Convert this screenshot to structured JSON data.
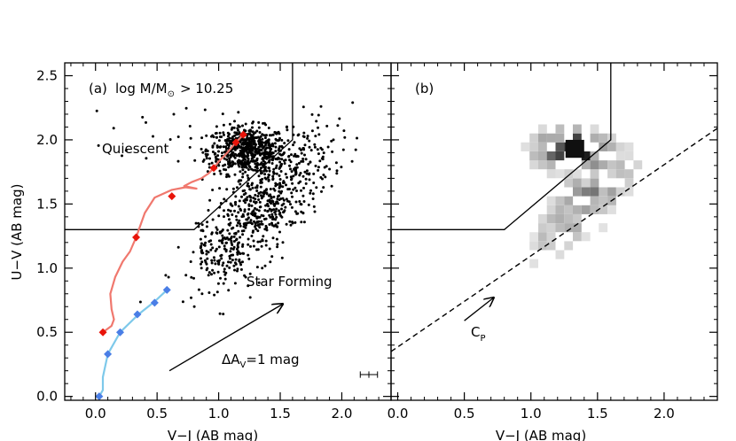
{
  "chart_data": [
    {
      "type": "scatter",
      "panel_label": "(a)",
      "mass_cut_prefix": "log M/M",
      "mass_cut_suffix": "> 10.25",
      "xlabel": "V−J (AB mag)",
      "ylabel": "U−V (AB mag)",
      "xlim": [
        -0.25,
        2.4
      ],
      "ylim": [
        -0.03,
        2.6
      ],
      "xticks": [
        "0.0",
        "0.5",
        "1.0",
        "1.5",
        "2.0"
      ],
      "yticks": [
        "0.0",
        "0.5",
        "1.0",
        "1.5",
        "2.0",
        "2.5"
      ],
      "region_labels": {
        "quiescent": "Quiescent",
        "star_forming": "Star Forming"
      },
      "dust_vector_label": {
        "prefix": "ΔA",
        "sub": "V",
        "suffix": "=1 mag"
      },
      "dust_vector": {
        "from": [
          0.6,
          0.2
        ],
        "to": [
          1.52,
          0.72
        ]
      },
      "quiescent_boundary": [
        [
          -0.25,
          1.3
        ],
        [
          0.8,
          1.3
        ],
        [
          1.6,
          2.0
        ],
        [
          1.6,
          2.6
        ]
      ],
      "error_bar": {
        "x": 2.22,
        "y": 0.17,
        "xerr": 0.07,
        "yerr": 0.025
      },
      "series": [
        {
          "color": "#f0786e",
          "marker_color": "#e8140a",
          "track": [
            [
              1.2,
              2.04
            ],
            [
              1.14,
              1.98
            ],
            [
              1.07,
              1.9
            ],
            [
              1.0,
              1.83
            ],
            [
              0.96,
              1.78
            ],
            [
              0.92,
              1.74
            ],
            [
              0.86,
              1.7
            ],
            [
              0.78,
              1.67
            ],
            [
              0.72,
              1.64
            ],
            [
              0.82,
              1.62
            ],
            [
              0.73,
              1.63
            ],
            [
              0.62,
              1.61
            ],
            [
              0.55,
              1.58
            ],
            [
              0.48,
              1.55
            ],
            [
              0.4,
              1.43
            ],
            [
              0.33,
              1.24
            ],
            [
              0.28,
              1.13
            ],
            [
              0.22,
              1.05
            ],
            [
              0.16,
              0.93
            ],
            [
              0.12,
              0.8
            ],
            [
              0.13,
              0.68
            ],
            [
              0.15,
              0.6
            ],
            [
              0.13,
              0.55
            ],
            [
              0.06,
              0.5
            ]
          ],
          "markers": [
            [
              1.2,
              2.04
            ],
            [
              1.14,
              1.98
            ],
            [
              0.96,
              1.78
            ],
            [
              0.62,
              1.56
            ],
            [
              0.33,
              1.24
            ],
            [
              0.06,
              0.5
            ]
          ]
        },
        {
          "color": "#7ec9ea",
          "marker_color": "#4a7ee6",
          "track": [
            [
              0.58,
              0.83
            ],
            [
              0.48,
              0.74
            ],
            [
              0.35,
              0.64
            ],
            [
              0.2,
              0.5
            ],
            [
              0.1,
              0.33
            ],
            [
              0.06,
              0.15
            ],
            [
              0.06,
              0.05
            ],
            [
              0.03,
              0.0
            ]
          ],
          "markers": [
            [
              0.58,
              0.83
            ],
            [
              0.48,
              0.73
            ],
            [
              0.34,
              0.64
            ],
            [
              0.2,
              0.5
            ],
            [
              0.1,
              0.33
            ],
            [
              0.03,
              0.0
            ]
          ]
        }
      ]
    },
    {
      "type": "heatmap",
      "panel_label": "(b)",
      "xlabel": "V−J (AB mag)",
      "xlim": [
        -0.05,
        2.4
      ],
      "ylim": [
        -0.03,
        2.6
      ],
      "xticks": [
        "0.0",
        "0.5",
        "1.0",
        "1.5",
        "2.0"
      ],
      "quiescent_boundary": [
        [
          -0.05,
          1.3
        ],
        [
          0.8,
          1.3
        ],
        [
          1.6,
          2.0
        ],
        [
          1.6,
          2.6
        ]
      ],
      "cp_line": {
        "from": [
          -0.05,
          0.35
        ],
        "to": [
          2.4,
          2.09
        ]
      },
      "cp_arrow": {
        "from": [
          0.5,
          0.59
        ],
        "to": [
          0.72,
          0.77
        ]
      },
      "cp_label": {
        "main": "C",
        "sub": "P"
      },
      "density_peak": [
        1.33,
        1.93
      ]
    }
  ]
}
